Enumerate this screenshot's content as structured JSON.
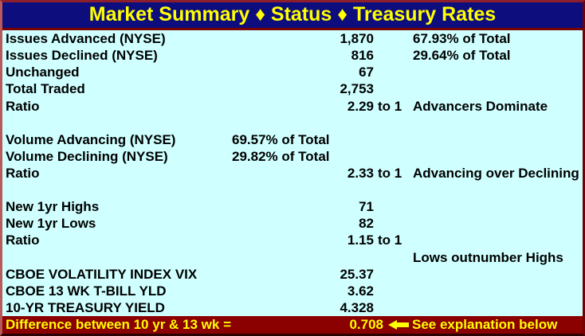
{
  "title": "Market Summary ♦ Status ♦ Treasury Rates",
  "colors": {
    "header_bg": "#0D0D7D",
    "title_text": "#FFFF00",
    "body_bg": "#CFFFFF",
    "body_text": "#000000",
    "footer_bg": "#8B0000",
    "footer_text": "#FFFF00",
    "border": "#7A0000"
  },
  "rows": [
    {
      "label": "Issues Advanced (NYSE)",
      "mid": "",
      "value": "1,870",
      "unit": "",
      "note": "67.93% of Total"
    },
    {
      "label": "Issues Declined (NYSE)",
      "mid": "",
      "value": "816",
      "unit": "",
      "note": "29.64% of Total"
    },
    {
      "label": "Unchanged",
      "mid": "",
      "value": "67",
      "unit": "",
      "note": ""
    },
    {
      "label": "Total Traded",
      "mid": "",
      "value": "2,753",
      "unit": "",
      "note": ""
    },
    {
      "label": "Ratio",
      "mid": "",
      "value": "2.29",
      "unit": "to 1",
      "note": "Advancers Dominate"
    },
    {
      "label": "",
      "mid": "",
      "value": "",
      "unit": "",
      "note": ""
    },
    {
      "label": "Volume Advancing (NYSE)",
      "mid": "69.57% of Total",
      "value": "",
      "unit": "",
      "note": ""
    },
    {
      "label": "Volume Declining (NYSE)",
      "mid": "29.82% of Total",
      "value": "",
      "unit": "",
      "note": ""
    },
    {
      "label": "Ratio",
      "mid": "",
      "value": "2.33",
      "unit": "to 1",
      "note": "Advancing over Declining"
    },
    {
      "label": "",
      "mid": "",
      "value": "",
      "unit": "",
      "note": ""
    },
    {
      "label": "New 1yr Highs",
      "mid": "",
      "value": "71",
      "unit": "",
      "note": ""
    },
    {
      "label": "New 1yr Lows",
      "mid": "",
      "value": "82",
      "unit": "",
      "note": ""
    },
    {
      "label": "Ratio",
      "mid": "",
      "value": "1.15",
      "unit": "to 1",
      "note": ""
    },
    {
      "label": "",
      "mid": "",
      "value": "",
      "unit": "",
      "note": "Lows outnumber Highs"
    },
    {
      "label": "CBOE VOLATILITY INDEX VIX",
      "mid": "",
      "value": "25.37",
      "unit": "",
      "note": ""
    },
    {
      "label": "CBOE 13 WK T-BILL YLD",
      "mid": "",
      "value": "3.62",
      "unit": "",
      "note": ""
    },
    {
      "label": "10-YR TREASURY YIELD",
      "mid": "",
      "value": "4.328",
      "unit": "",
      "note": ""
    }
  ],
  "footer": {
    "label": "Difference between 10 yr & 13 wk =",
    "value": "0.708",
    "note": "See explanation below"
  }
}
